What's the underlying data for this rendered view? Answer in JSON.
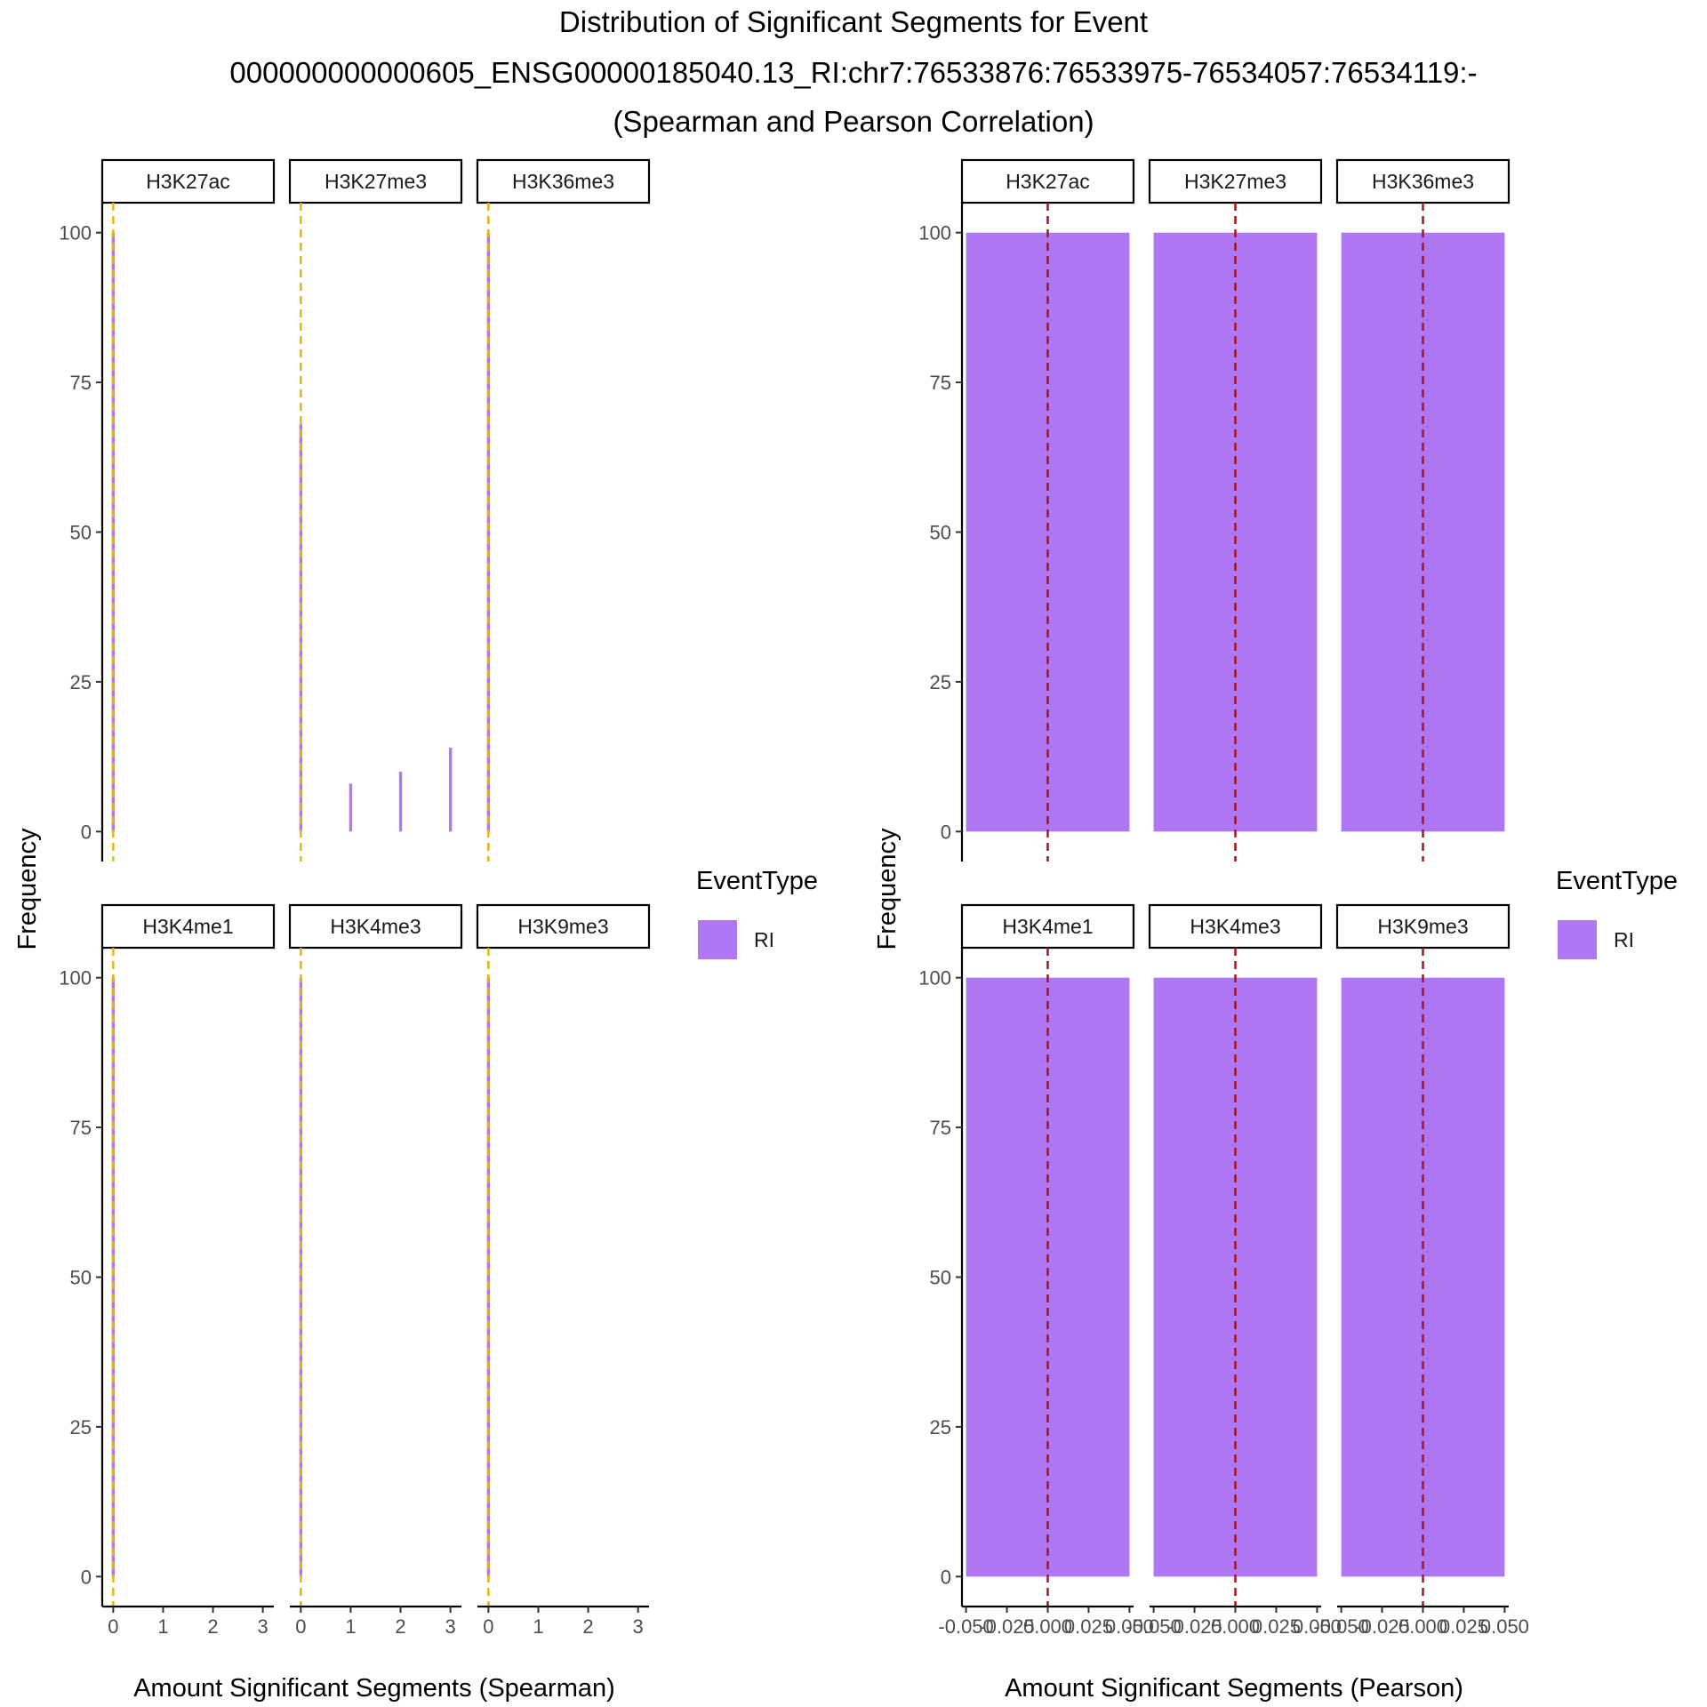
{
  "title_lines": [
    "Distribution of Significant Segments for Event",
    "000000000000605_ENSG00000185040.13_RI:chr7:76533876:76533975-76534057:76534119:-",
    "(Spearman and Pearson Correlation)"
  ],
  "colors": {
    "bar": "#b077f4",
    "spearman_line": "#e6b50c",
    "pearson_line": "#a31622",
    "axis": "#000000"
  },
  "chart_data": [
    {
      "type": "bar",
      "panel": "spearman",
      "xlabel": "Amount Significant Segments (Spearman)",
      "ylabel": "Frequency",
      "ylim": [
        0,
        100
      ],
      "y_ticks": [
        0,
        25,
        50,
        75,
        100
      ],
      "x_ticks": [
        0,
        1,
        2,
        3
      ],
      "x_tick_labels": [
        "0",
        "1",
        "2",
        "3"
      ],
      "xlim": [
        -0.22,
        3.22
      ],
      "bar_width": 0.1,
      "vline_x": 0,
      "vline_style": "dashed",
      "legend": {
        "title": "EventType",
        "entries": [
          "RI"
        ]
      },
      "facets": [
        {
          "label": "H3K27ac",
          "bars": [
            {
              "x": 0,
              "y": 100
            }
          ]
        },
        {
          "label": "H3K27me3",
          "bars": [
            {
              "x": 0,
              "y": 68
            },
            {
              "x": 1,
              "y": 8
            },
            {
              "x": 2,
              "y": 10
            },
            {
              "x": 3,
              "y": 14
            }
          ]
        },
        {
          "label": "H3K36me3",
          "bars": [
            {
              "x": 0,
              "y": 100
            }
          ]
        },
        {
          "label": "H3K4me1",
          "bars": [
            {
              "x": 0,
              "y": 100
            }
          ]
        },
        {
          "label": "H3K4me3",
          "bars": [
            {
              "x": 0,
              "y": 100
            }
          ]
        },
        {
          "label": "H3K9me3",
          "bars": [
            {
              "x": 0,
              "y": 100
            }
          ]
        }
      ]
    },
    {
      "type": "bar",
      "panel": "pearson",
      "xlabel": "Amount Significant Segments (Pearson)",
      "ylabel": "Frequency",
      "ylim": [
        0,
        100
      ],
      "y_ticks": [
        0,
        25,
        50,
        75,
        100
      ],
      "x_ticks": [
        -0.05,
        -0.025,
        0,
        0.025,
        0.05
      ],
      "x_tick_labels": [
        "-0.050",
        "-0.025",
        "0.000",
        "0.025",
        "0.050"
      ],
      "xlim": [
        -0.0525,
        0.0525
      ],
      "bar_width": 0.1,
      "vline_x": 0,
      "vline_style": "dashed",
      "legend": {
        "title": "EventType",
        "entries": [
          "RI"
        ]
      },
      "facets": [
        {
          "label": "H3K27ac",
          "bars": [
            {
              "x": 0,
              "y": 100
            }
          ]
        },
        {
          "label": "H3K27me3",
          "bars": [
            {
              "x": 0,
              "y": 100
            }
          ]
        },
        {
          "label": "H3K36me3",
          "bars": [
            {
              "x": 0,
              "y": 100
            }
          ]
        },
        {
          "label": "H3K4me1",
          "bars": [
            {
              "x": 0,
              "y": 100
            }
          ]
        },
        {
          "label": "H3K4me3",
          "bars": [
            {
              "x": 0,
              "y": 100
            }
          ]
        },
        {
          "label": "H3K9me3",
          "bars": [
            {
              "x": 0,
              "y": 100
            }
          ]
        }
      ]
    }
  ]
}
